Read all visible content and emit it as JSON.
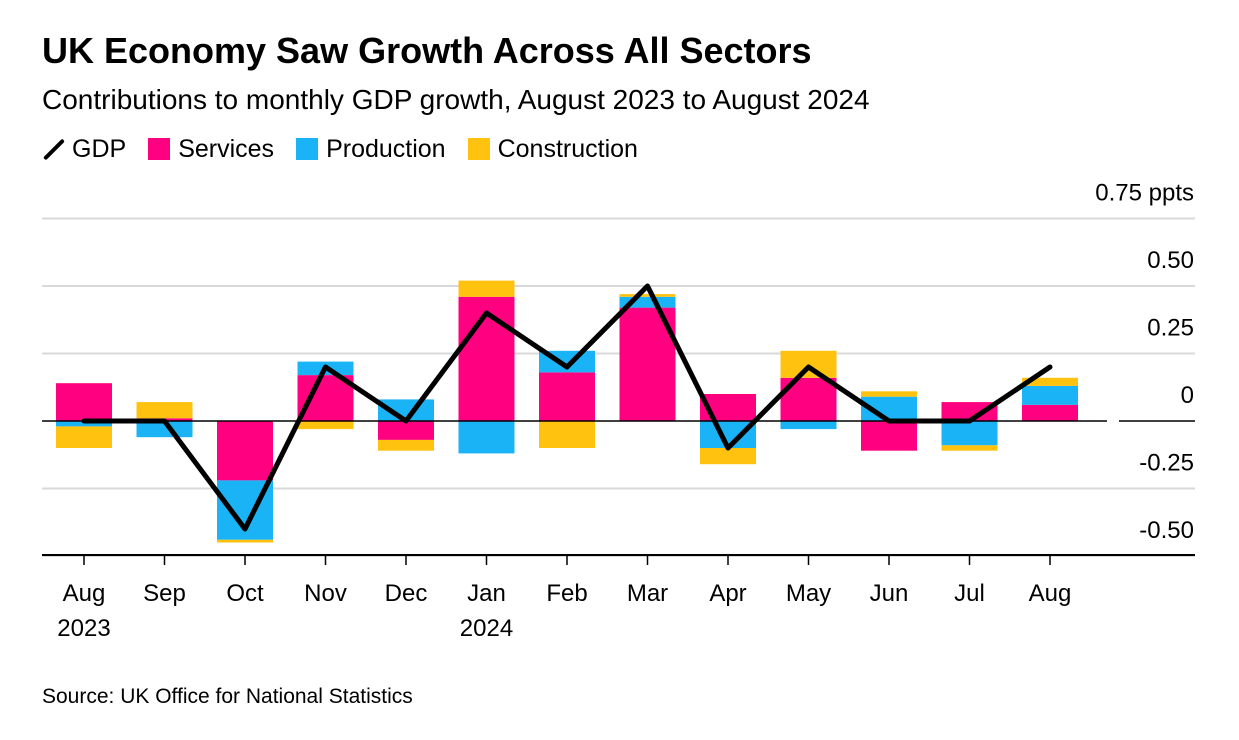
{
  "header": {
    "title": "UK Economy Saw Growth Across All Sectors",
    "subtitle": "Contributions to monthly GDP growth, August 2023 to August 2024"
  },
  "legend": {
    "gdp": "GDP",
    "services": "Services",
    "production": "Production",
    "construction": "Construction"
  },
  "footer": {
    "source": "Source: UK Office for National Statistics"
  },
  "colors": {
    "gdp": "#000000",
    "services": "#ff0080",
    "production": "#1ab3f5",
    "construction": "#ffc20e",
    "grid": "#d9d9d9"
  },
  "chart_data": {
    "type": "bar",
    "stacked": true,
    "categories": [
      "Aug",
      "Sep",
      "Oct",
      "Nov",
      "Dec",
      "Jan",
      "Feb",
      "Mar",
      "Apr",
      "May",
      "Jun",
      "Jul",
      "Aug"
    ],
    "year_labels": [
      "2023",
      "",
      "",
      "",
      "",
      "2024",
      "",
      "",
      "",
      "",
      "",
      "",
      ""
    ],
    "series": [
      {
        "name": "Services",
        "values": [
          0.14,
          0.01,
          -0.22,
          0.17,
          -0.07,
          0.46,
          0.18,
          0.42,
          0.1,
          0.16,
          -0.11,
          0.07,
          0.06
        ]
      },
      {
        "name": "Production",
        "values": [
          -0.02,
          -0.06,
          -0.22,
          0.05,
          0.08,
          -0.12,
          0.08,
          0.04,
          -0.1,
          -0.03,
          0.09,
          -0.09,
          0.07
        ]
      },
      {
        "name": "Construction",
        "values": [
          -0.08,
          0.06,
          -0.01,
          -0.03,
          -0.04,
          0.06,
          -0.1,
          0.01,
          -0.06,
          0.1,
          0.02,
          -0.02,
          0.03
        ]
      },
      {
        "name": "GDP",
        "type": "line",
        "values": [
          0.0,
          0.0,
          -0.4,
          0.2,
          0.0,
          0.4,
          0.2,
          0.5,
          -0.1,
          0.2,
          0.0,
          0.0,
          0.2
        ]
      }
    ],
    "ylim": [
      -0.5,
      0.75
    ],
    "yticks": [
      0.75,
      0.5,
      0.25,
      0,
      -0.25,
      -0.5
    ],
    "ytick_labels": [
      "0.75 ppts",
      "0.50",
      "0.25",
      "0",
      "-0.25",
      "-0.50"
    ],
    "grid": true,
    "legend_position": "top-left"
  }
}
